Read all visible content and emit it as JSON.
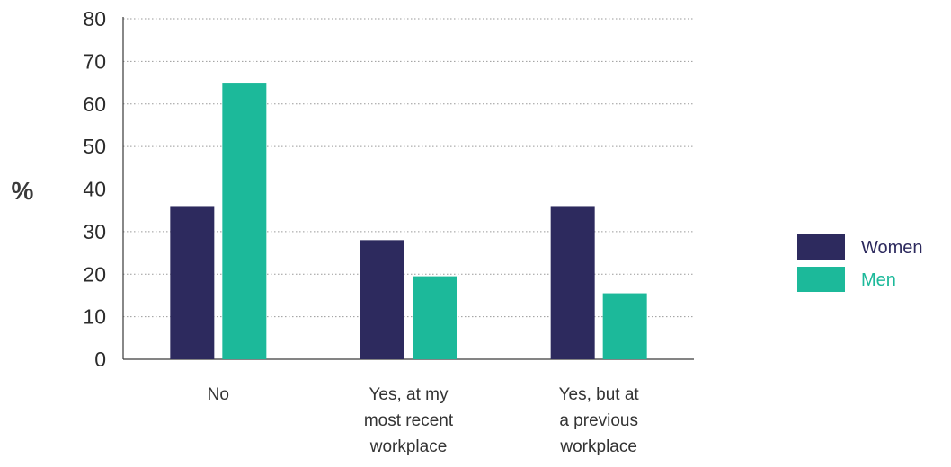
{
  "chart_data": {
    "type": "bar",
    "categories": [
      [
        "No"
      ],
      [
        "Yes, at my",
        "most recent",
        "workplace"
      ],
      [
        "Yes, but at",
        "a previous",
        "workplace"
      ]
    ],
    "series": [
      {
        "name": "Women",
        "values": [
          36,
          28,
          36
        ],
        "color": "#2d2a5e"
      },
      {
        "name": "Men",
        "values": [
          65,
          19.5,
          15.5
        ],
        "color": "#1cb99a"
      }
    ],
    "title": "",
    "xlabel": "",
    "ylabel": "%",
    "ylim": [
      0,
      80
    ],
    "yticks": [
      0,
      10,
      20,
      30,
      40,
      50,
      60,
      70,
      80
    ],
    "grid": "dotted-horizontal",
    "legend": "right"
  }
}
